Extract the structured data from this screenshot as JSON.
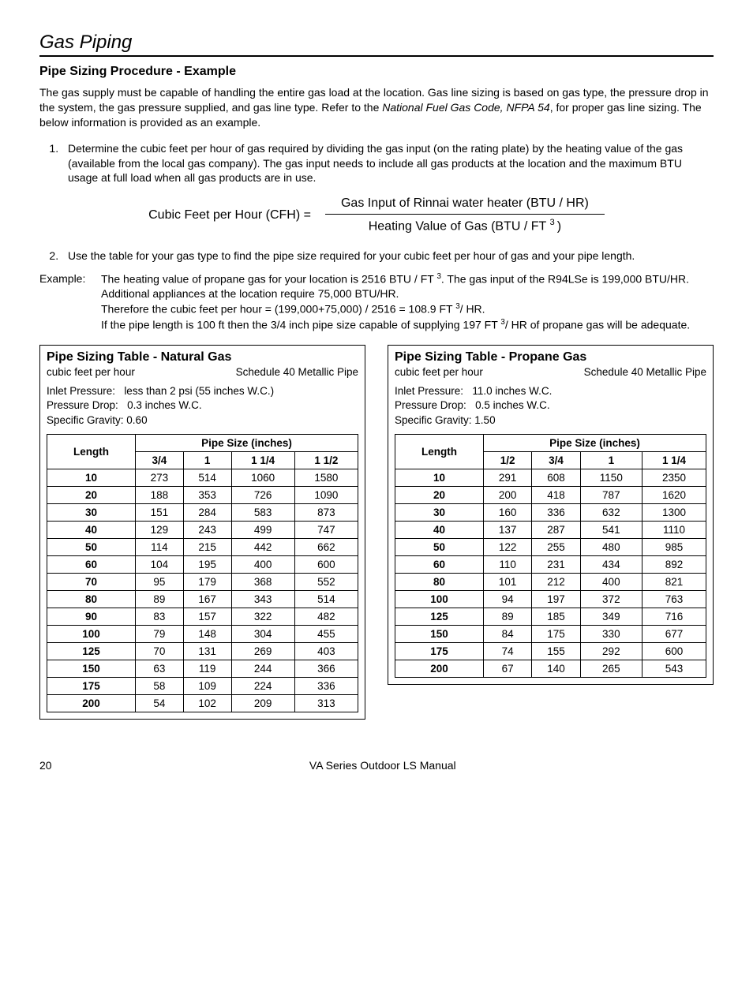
{
  "section_title": "Gas Piping",
  "subheading": "Pipe Sizing Procedure - Example",
  "intro_part1": "The gas supply must be capable of handling the entire gas load at the location.  Gas line sizing is based on gas type, the pressure drop in the system, the gas pressure supplied, and gas line type.  Refer to the ",
  "intro_italic": "National Fuel Gas Code, NFPA 54",
  "intro_part2": ", for proper gas line sizing.  The below information is provided as an example.",
  "step1": "Determine the cubic feet per hour of gas required by dividing the gas input (on the rating plate) by the heating value of the gas (available from the local gas company).  The gas input needs to include all gas products at the location and the maximum BTU usage at full load when all gas products are in use.",
  "formula_lhs": "Cubic Feet per Hour (CFH) =",
  "formula_num": "Gas Input of Rinnai water heater (BTU / HR)",
  "formula_den_a": "Heating Value of Gas (BTU / FT ",
  "formula_den_b": ")",
  "step2": "Use the table for your gas type to find the pipe size required for your cubic feet per hour of gas and your pipe length.",
  "example_label": "Example:",
  "example_l1a": "The heating value of propane gas for your location is 2516 BTU / FT ",
  "example_l1b": ".  The gas input of the R94LSe is 199,000 BTU/HR.   Additional appliances at the location require 75,000 BTU/HR.",
  "example_l2a": "Therefore the cubic feet per hour = (199,000+75,000) / 2516 = 108.9 FT ",
  "example_l2b": "/ HR.",
  "example_l3a": "If the pipe length is 100 ft then the 3/4 inch pipe size capable of supplying 197 FT ",
  "example_l3b": "/ HR of propane gas will be adequate.",
  "natural": {
    "title": "Pipe Sizing Table - Natural Gas",
    "unit": "cubic feet per hour",
    "pipe_type": "Schedule 40 Metallic Pipe",
    "inlet_label": "Inlet Pressure:",
    "inlet_value": "less than 2 psi (55 inches W.C.)",
    "drop_label": "Pressure Drop:",
    "drop_value": "0.3 inches W.C.",
    "sg_label": "Specific Gravity:",
    "sg_value": "0.60",
    "header_length": "Length",
    "header_pipesize": "Pipe Size (inches)",
    "sizes": [
      "3/4",
      "1",
      "1 1/4",
      "1 1/2"
    ],
    "rows": [
      [
        "10",
        "273",
        "514",
        "1060",
        "1580"
      ],
      [
        "20",
        "188",
        "353",
        "726",
        "1090"
      ],
      [
        "30",
        "151",
        "284",
        "583",
        "873"
      ],
      [
        "40",
        "129",
        "243",
        "499",
        "747"
      ],
      [
        "50",
        "114",
        "215",
        "442",
        "662"
      ],
      [
        "60",
        "104",
        "195",
        "400",
        "600"
      ],
      [
        "70",
        "95",
        "179",
        "368",
        "552"
      ],
      [
        "80",
        "89",
        "167",
        "343",
        "514"
      ],
      [
        "90",
        "83",
        "157",
        "322",
        "482"
      ],
      [
        "100",
        "79",
        "148",
        "304",
        "455"
      ],
      [
        "125",
        "70",
        "131",
        "269",
        "403"
      ],
      [
        "150",
        "63",
        "119",
        "244",
        "366"
      ],
      [
        "175",
        "58",
        "109",
        "224",
        "336"
      ],
      [
        "200",
        "54",
        "102",
        "209",
        "313"
      ]
    ]
  },
  "propane": {
    "title": "Pipe Sizing Table - Propane Gas",
    "unit": "cubic feet per hour",
    "pipe_type": "Schedule 40 Metallic Pipe",
    "inlet_label": "Inlet Pressure:",
    "inlet_value": "11.0 inches W.C.",
    "drop_label": "Pressure Drop:",
    "drop_value": "0.5 inches W.C.",
    "sg_label": "Specific Gravity:",
    "sg_value": "1.50",
    "header_length": "Length",
    "header_pipesize": "Pipe Size (inches)",
    "sizes": [
      "1/2",
      "3/4",
      "1",
      "1 1/4"
    ],
    "rows": [
      [
        "10",
        "291",
        "608",
        "1150",
        "2350"
      ],
      [
        "20",
        "200",
        "418",
        "787",
        "1620"
      ],
      [
        "30",
        "160",
        "336",
        "632",
        "1300"
      ],
      [
        "40",
        "137",
        "287",
        "541",
        "1110"
      ],
      [
        "50",
        "122",
        "255",
        "480",
        "985"
      ],
      [
        "60",
        "110",
        "231",
        "434",
        "892"
      ],
      [
        "80",
        "101",
        "212",
        "400",
        "821"
      ],
      [
        "100",
        "94",
        "197",
        "372",
        "763"
      ],
      [
        "125",
        "89",
        "185",
        "349",
        "716"
      ],
      [
        "150",
        "84",
        "175",
        "330",
        "677"
      ],
      [
        "175",
        "74",
        "155",
        "292",
        "600"
      ],
      [
        "200",
        "67",
        "140",
        "265",
        "543"
      ]
    ]
  },
  "footer_page": "20",
  "footer_manual": "VA Series Outdoor LS Manual"
}
